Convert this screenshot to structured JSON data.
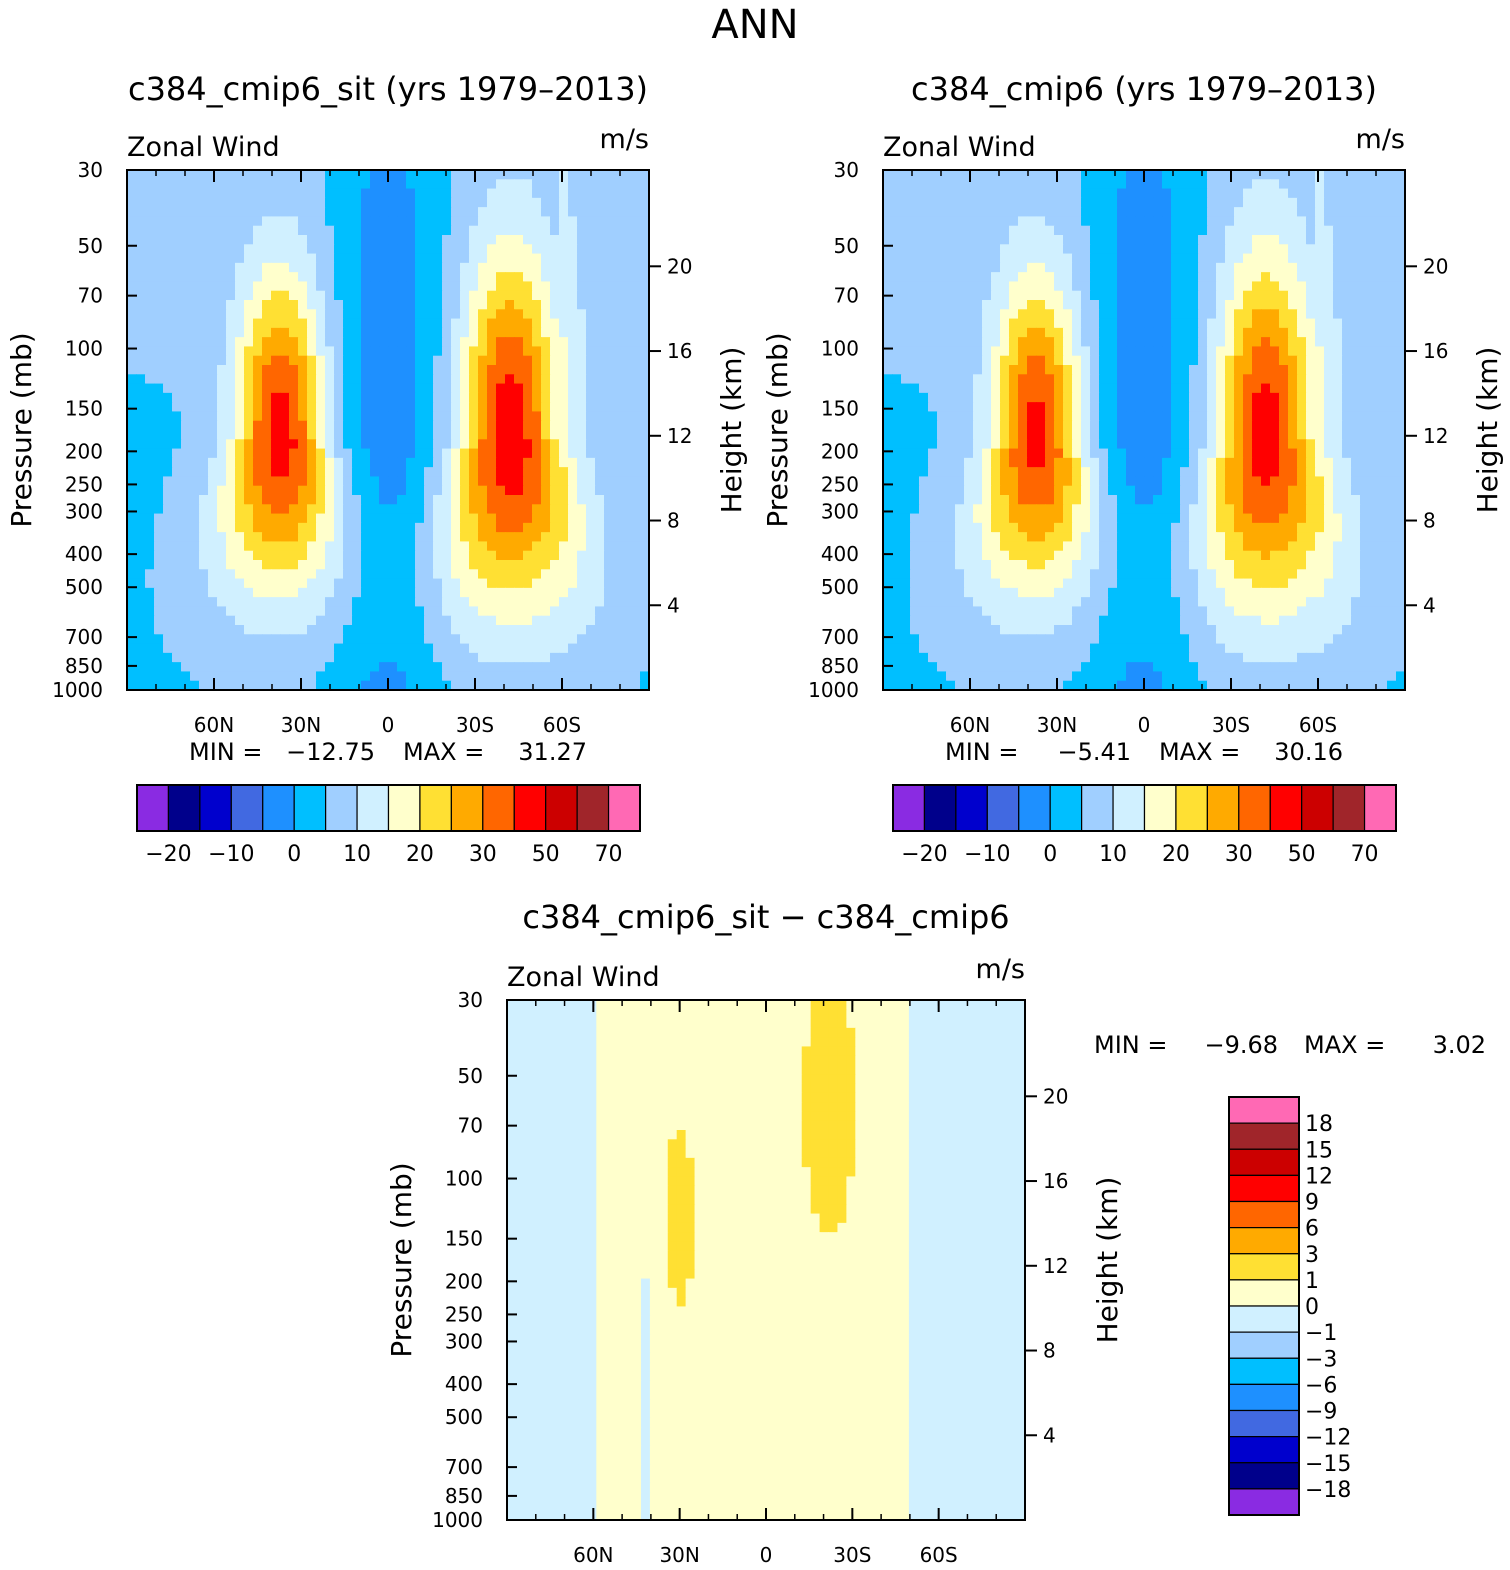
{
  "figure_title": "ANN",
  "chart_data": [
    {
      "type": "heatmap",
      "id": "top-left",
      "title": "c384_cmip6_sit (yrs 1979–2013)",
      "left_label": "Zonal Wind",
      "right_label": "m/s",
      "ylabel": "Pressure (mb)",
      "y2label": "Height (km)",
      "pressure_ticks": [
        "30",
        "50",
        "70",
        "100",
        "150",
        "200",
        "250",
        "300",
        "400",
        "500",
        "700",
        "850",
        "1000"
      ],
      "height_ticks": [
        "20",
        "16",
        "12",
        "8",
        "4"
      ],
      "lat_ticks": [
        "60N",
        "30N",
        "0",
        "30S",
        "60S"
      ],
      "stats": {
        "min_label": "MIN =",
        "min": "−12.75",
        "max_label": "MAX =",
        "max": "31.27"
      },
      "field": {
        "jets": [
          {
            "lat": 37,
            "p": 180,
            "peak": 31.27
          },
          {
            "lat": -42,
            "p": 180,
            "peak": 31.27
          }
        ],
        "min": -12.75
      }
    },
    {
      "type": "heatmap",
      "id": "top-right",
      "title": "c384_cmip6 (yrs 1979–2013)",
      "left_label": "Zonal Wind",
      "right_label": "m/s",
      "ylabel": "Pressure (mb)",
      "y2label": "Height (km)",
      "pressure_ticks": [
        "30",
        "50",
        "70",
        "100",
        "150",
        "200",
        "250",
        "300",
        "400",
        "500",
        "700",
        "850",
        "1000"
      ],
      "height_ticks": [
        "20",
        "16",
        "12",
        "8",
        "4"
      ],
      "lat_ticks": [
        "60N",
        "30N",
        "0",
        "30S",
        "60S"
      ],
      "stats": {
        "min_label": "MIN =",
        "min": "−5.41",
        "max_label": "MAX =",
        "max": "30.16"
      },
      "field": {
        "jets": [
          {
            "lat": 37,
            "p": 180,
            "peak": 30.16
          },
          {
            "lat": -42,
            "p": 180,
            "peak": 30.16
          }
        ],
        "min": -5.41
      }
    },
    {
      "type": "heatmap",
      "id": "bottom",
      "title": "c384_cmip6_sit − c384_cmip6",
      "left_label": "Zonal Wind",
      "right_label": "m/s",
      "ylabel": "Pressure (mb)",
      "y2label": "Height (km)",
      "pressure_ticks": [
        "30",
        "50",
        "70",
        "100",
        "150",
        "200",
        "250",
        "300",
        "400",
        "500",
        "700",
        "850",
        "1000"
      ],
      "height_ticks": [
        "20",
        "16",
        "12",
        "8",
        "4"
      ],
      "lat_ticks": [
        "60N",
        "30N",
        "0",
        "30S",
        "60S"
      ],
      "stats": {
        "min_label": "MIN =",
        "min": "−9.68",
        "max_label": "MAX =",
        "max": "3.02"
      },
      "field": {
        "min": -9.68,
        "max": 3.02
      }
    }
  ],
  "colorbars": {
    "absolute": {
      "colors": [
        "#8a2be2",
        "#00008b",
        "#0000cd",
        "#4169e1",
        "#1e90ff",
        "#00bfff",
        "#a0cfff",
        "#d0f0ff",
        "#ffffcc",
        "#ffe033",
        "#ffaa00",
        "#ff6600",
        "#ff0000",
        "#cc0000",
        "#a0252a",
        "#ff69b4"
      ],
      "labels": [
        "−20",
        "−10",
        "0",
        "10",
        "20",
        "30",
        "50",
        "70"
      ]
    },
    "difference": {
      "colors": [
        "#ff69b4",
        "#a0252a",
        "#cc0000",
        "#ff0000",
        "#ff6600",
        "#ffaa00",
        "#ffe033",
        "#ffffcc",
        "#d0f0ff",
        "#a0cfff",
        "#00bfff",
        "#1e90ff",
        "#4169e1",
        "#0000cd",
        "#00008b",
        "#8a2be2"
      ],
      "labels": [
        "18",
        "15",
        "12",
        "9",
        "6",
        "3",
        "1",
        "0",
        "−1",
        "−3",
        "−6",
        "−9",
        "−12",
        "−15",
        "−18"
      ]
    }
  }
}
